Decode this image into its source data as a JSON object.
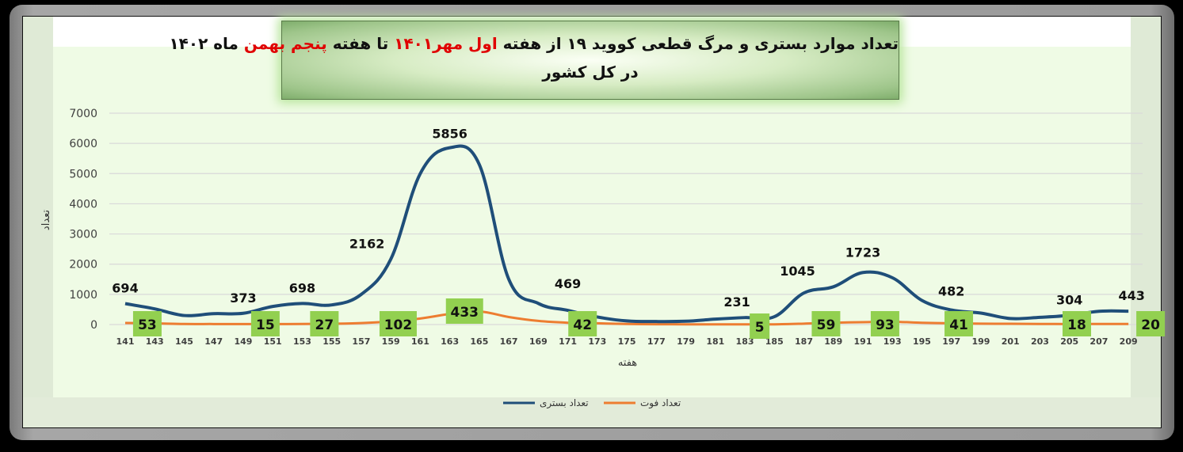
{
  "title": {
    "line1_parts": [
      {
        "text": "تعداد موارد بستری و مرگ قطعی کووید ۱۹ از هفته ",
        "color": "#111111"
      },
      {
        "text": "اول مهر۱۴۰۱",
        "color": "#e00000"
      },
      {
        "text": " تا هفته ",
        "color": "#111111"
      },
      {
        "text": "پنجم بهمن",
        "color": "#e00000"
      },
      {
        "text": " ماه ۱۴۰۲",
        "color": "#111111"
      }
    ],
    "line2": "در کل کشور"
  },
  "colors": {
    "hospitalized": "#1f4e79",
    "deaths": "#ed7d31",
    "label_box": "#92d050",
    "plot_bg": "#effbe5",
    "gridline": "#d9d9d9"
  },
  "chart_data": {
    "type": "line",
    "title": "تعداد موارد بستری و مرگ قطعی کووید ۱۹ از هفته اول مهر۱۴۰۱ تا هفته پنجم بهمن ماه ۱۴۰۲ در کل کشور",
    "xlabel": "هفته",
    "ylabel": "تعداد",
    "ylim": [
      0,
      7000
    ],
    "yticks": [
      0,
      1000,
      2000,
      3000,
      4000,
      5000,
      6000,
      7000
    ],
    "xticks": [
      141,
      143,
      145,
      147,
      149,
      151,
      153,
      155,
      157,
      159,
      161,
      163,
      165,
      167,
      169,
      171,
      173,
      175,
      177,
      179,
      181,
      183,
      185,
      187,
      189,
      191,
      193,
      195,
      197,
      199,
      201,
      203,
      205,
      207,
      209
    ],
    "grid": true,
    "legend_position": "bottom",
    "smooth": true,
    "series": [
      {
        "name": "تعداد بستری",
        "color": "#1f4e79",
        "x": [
          141,
          143,
          145,
          147,
          149,
          151,
          153,
          155,
          157,
          159,
          161,
          163,
          165,
          167,
          169,
          171,
          173,
          175,
          177,
          179,
          181,
          183,
          185,
          187,
          189,
          191,
          193,
          195,
          197,
          199,
          201,
          203,
          205,
          207,
          209
        ],
        "values": [
          694,
          520,
          300,
          360,
          373,
          600,
          698,
          650,
          1000,
          2162,
          5000,
          5856,
          5300,
          1500,
          700,
          469,
          250,
          120,
          100,
          110,
          180,
          231,
          260,
          1045,
          1250,
          1723,
          1550,
          800,
          482,
          380,
          200,
          240,
          304,
          440,
          443
        ],
        "labels": {
          "141": "694",
          "149": "373",
          "153": "698",
          "159": "2162",
          "163": "5856",
          "171": "469",
          "183": "231",
          "187": "1045",
          "191": "1723",
          "197": "482",
          "205": "304",
          "209": "443"
        }
      },
      {
        "name": "تعداد فوت",
        "color": "#ed7d31",
        "x": [
          141,
          143,
          145,
          147,
          149,
          151,
          153,
          155,
          157,
          159,
          161,
          163,
          165,
          167,
          169,
          171,
          173,
          175,
          177,
          179,
          181,
          183,
          185,
          187,
          189,
          191,
          193,
          195,
          197,
          199,
          201,
          203,
          205,
          207,
          209
        ],
        "values": [
          53,
          40,
          20,
          18,
          16,
          15,
          20,
          27,
          50,
          102,
          200,
          350,
          433,
          250,
          120,
          60,
          42,
          20,
          10,
          8,
          6,
          5,
          8,
          30,
          59,
          80,
          93,
          60,
          41,
          30,
          25,
          20,
          18,
          19,
          20
        ],
        "labels": [
          {
            "week": 142.5,
            "text": "53"
          },
          {
            "week": 150.5,
            "text": "15"
          },
          {
            "week": 154.5,
            "text": "27"
          },
          {
            "week": 159.5,
            "text": "102"
          },
          {
            "week": 164,
            "text": "433"
          },
          {
            "week": 172,
            "text": "42"
          },
          {
            "week": 184,
            "text": "5"
          },
          {
            "week": 188.5,
            "text": "59"
          },
          {
            "week": 192.5,
            "text": "93"
          },
          {
            "week": 197.5,
            "text": "41"
          },
          {
            "week": 205.5,
            "text": "18"
          },
          {
            "week": 210.5,
            "text": "20"
          }
        ]
      }
    ]
  },
  "legend": [
    {
      "label": "تعداد فوت",
      "color": "#ed7d31"
    },
    {
      "label": "تعداد بستری",
      "color": "#1f4e79"
    }
  ]
}
